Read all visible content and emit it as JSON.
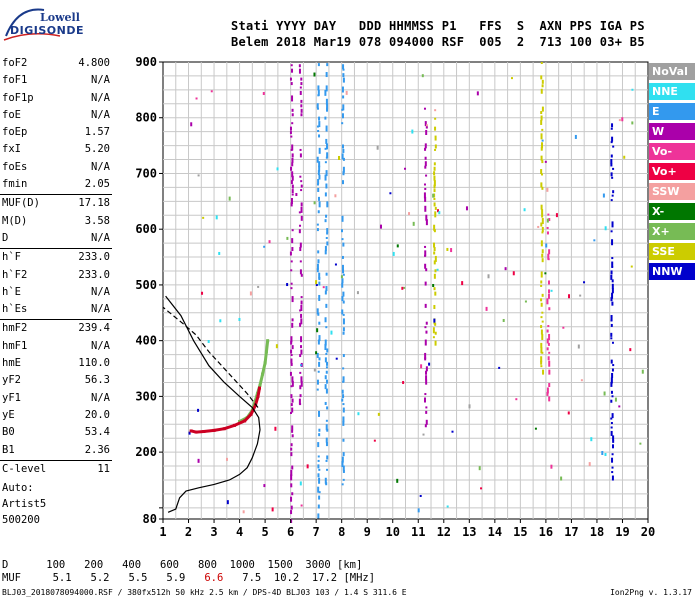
{
  "logo": {
    "line1": "Lowell",
    "line2": "DIGISONDE"
  },
  "header": {
    "line1": "Stati YYYY DAY   DDD HHMMSS P1   FFS  S  AXN PPS IGA PS",
    "line2": "Belem 2018 Mar19 078 094000 RSF  005  2  713 100 03+ B5"
  },
  "params": [
    {
      "label": "foF2",
      "value": "4.800"
    },
    {
      "label": "foF1",
      "value": "N/A"
    },
    {
      "label": "foF1p",
      "value": "N/A"
    },
    {
      "label": "foE",
      "value": "N/A"
    },
    {
      "label": "foEp",
      "value": "1.57"
    },
    {
      "label": "fxI",
      "value": "5.20"
    },
    {
      "label": "foEs",
      "value": "N/A"
    },
    {
      "label": "fmin",
      "value": "2.05"
    },
    {
      "label": "MUF(D)",
      "value": "17.18"
    },
    {
      "label": "M(D)",
      "value": "3.58"
    },
    {
      "label": "D",
      "value": "N/A"
    },
    {
      "label": "h`F",
      "value": "233.0"
    },
    {
      "label": "h`F2",
      "value": "233.0"
    },
    {
      "label": "h`E",
      "value": "N/A"
    },
    {
      "label": "h`Es",
      "value": "N/A"
    },
    {
      "label": "hmF2",
      "value": "239.4"
    },
    {
      "label": "hmF1",
      "value": "N/A"
    },
    {
      "label": "hmE",
      "value": "110.0"
    },
    {
      "label": "yF2",
      "value": "56.3"
    },
    {
      "label": "yF1",
      "value": "N/A"
    },
    {
      "label": "yE",
      "value": "20.0"
    },
    {
      "label": "B0",
      "value": "53.4"
    },
    {
      "label": "B1",
      "value": "2.36"
    },
    {
      "label": "C-level",
      "value": "11"
    }
  ],
  "auto": {
    "line1": "Auto:",
    "line2": "Artist5",
    "line3": "500200"
  },
  "legend": [
    {
      "label": "NoVal",
      "color": "#a0a0a0"
    },
    {
      "label": "NNE",
      "color": "#30e0f0"
    },
    {
      "label": "E",
      "color": "#3399ee"
    },
    {
      "label": "W",
      "color": "#aa00aa"
    },
    {
      "label": "Vo-",
      "color": "#ee3399"
    },
    {
      "label": "Vo+",
      "color": "#ee0044"
    },
    {
      "label": "SSW",
      "color": "#f4a0a0"
    },
    {
      "label": "X-",
      "color": "#007700"
    },
    {
      "label": "X+",
      "color": "#77bb55"
    },
    {
      "label": "SSE",
      "color": "#cccc00"
    },
    {
      "label": "NNW",
      "color": "#0000cc"
    }
  ],
  "footer": {
    "line1": "D      100   200   400   600   800  1000  1500  3000 [km]",
    "mufLabel": "MUF",
    "mufValues": [
      "5.1",
      "5.2",
      "5.5",
      "5.9",
      "6.6",
      "7.5",
      "10.2",
      "17.2"
    ],
    "mufUnit": "[MHz]",
    "line3": "BLJ03_2018078094000.RSF / 380fx512h 50 kHz 2.5 km / DPS-4D BLJ03 103 / 1.4 S 311.6 E",
    "version": "Ion2Png v. 1.3.17"
  },
  "chart_data": {
    "type": "scatter",
    "xlim": [
      1,
      20
    ],
    "ylim": [
      80,
      900
    ],
    "x_ticks": [
      1,
      2,
      3,
      4,
      5,
      6,
      7,
      8,
      9,
      10,
      11,
      12,
      13,
      14,
      15,
      16,
      17,
      18,
      19,
      20
    ],
    "y_ticks": [
      80,
      100,
      200,
      300,
      400,
      500,
      600,
      700,
      800,
      900
    ],
    "y_tick_labels": [
      "80",
      "",
      "200",
      "300",
      "400",
      "500",
      "600",
      "700",
      "800",
      "900"
    ],
    "trace_F2": [
      [
        2.1,
        238
      ],
      [
        2.3,
        236
      ],
      [
        2.6,
        237
      ],
      [
        3.0,
        239
      ],
      [
        3.4,
        242
      ],
      [
        3.8,
        248
      ],
      [
        4.2,
        256
      ],
      [
        4.45,
        268
      ],
      [
        4.62,
        284
      ],
      [
        4.72,
        300
      ],
      [
        4.78,
        315
      ]
    ],
    "trace_F2_x": [
      [
        4.0,
        255
      ],
      [
        4.3,
        262
      ],
      [
        4.5,
        275
      ],
      [
        4.6,
        290
      ],
      [
        4.7,
        305
      ],
      [
        4.8,
        320
      ],
      [
        4.9,
        340
      ],
      [
        5.0,
        360
      ],
      [
        5.05,
        380
      ],
      [
        5.1,
        400
      ]
    ],
    "profile_solid": [
      [
        1.2,
        92
      ],
      [
        1.5,
        98
      ],
      [
        1.65,
        118
      ],
      [
        1.9,
        130
      ],
      [
        2.4,
        136
      ],
      [
        3.0,
        142
      ],
      [
        3.6,
        150
      ],
      [
        4.0,
        160
      ],
      [
        4.3,
        172
      ],
      [
        4.5,
        190
      ],
      [
        4.7,
        215
      ],
      [
        4.8,
        240
      ],
      [
        4.75,
        262
      ],
      [
        4.5,
        280
      ],
      [
        4.0,
        300
      ],
      [
        3.4,
        325
      ],
      [
        2.8,
        355
      ],
      [
        2.2,
        400
      ],
      [
        1.7,
        445
      ],
      [
        1.1,
        480
      ]
    ],
    "profile_dashed": [
      [
        4.72,
        280
      ],
      [
        4.3,
        305
      ],
      [
        3.8,
        330
      ],
      [
        3.3,
        355
      ],
      [
        2.8,
        380
      ],
      [
        2.3,
        410
      ],
      [
        1.8,
        430
      ],
      [
        1.4,
        445
      ],
      [
        1.0,
        460
      ]
    ],
    "columns": [
      {
        "x": 6.05,
        "y": [
          80,
          900
        ],
        "color": "#aa00aa"
      },
      {
        "x": 6.4,
        "y": [
          280,
          900
        ],
        "color": "#aa00aa"
      },
      {
        "x": 7.1,
        "y": [
          90,
          900
        ],
        "color": "#3399ee"
      },
      {
        "x": 7.4,
        "y": [
          130,
          900
        ],
        "color": "#3399ee"
      },
      {
        "x": 8.05,
        "y": [
          120,
          900
        ],
        "color": "#3399ee"
      },
      {
        "x": 11.3,
        "y": [
          250,
          820
        ],
        "color": "#aa00aa"
      },
      {
        "x": 11.65,
        "y": [
          400,
          800
        ],
        "color": "#cccc00"
      },
      {
        "x": 15.85,
        "y": [
          300,
          900
        ],
        "color": "#cccc00"
      },
      {
        "x": 16.1,
        "y": [
          300,
          650
        ],
        "color": "#ee3399"
      },
      {
        "x": 18.6,
        "y": [
          150,
          800
        ],
        "color": "#0000cc"
      }
    ]
  }
}
